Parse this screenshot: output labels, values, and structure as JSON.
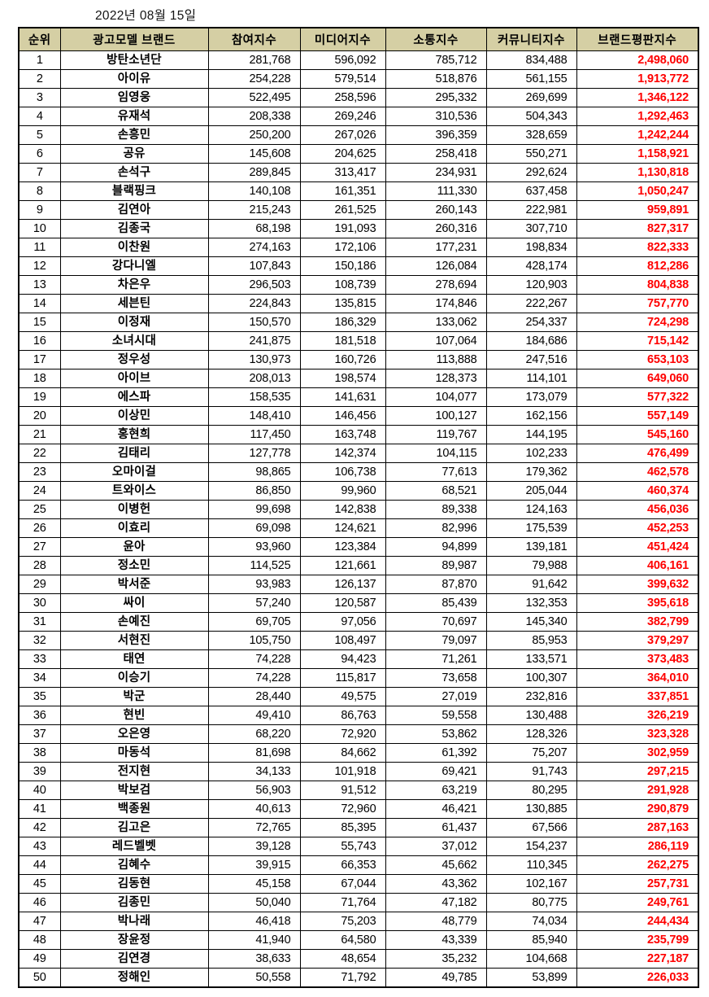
{
  "date_label": "2022년 08월 15일",
  "colors": {
    "header_bg": "#d5cfa4",
    "header_text": "#000000",
    "reputation_text": "#ff0000",
    "border": "#000000"
  },
  "chart_data": {
    "type": "table",
    "columns": [
      "순위",
      "광고모델 브랜드",
      "참여지수",
      "미디어지수",
      "소통지수",
      "커뮤니티지수",
      "브랜드평판지수"
    ],
    "rows": [
      [
        "1",
        "방탄소년단",
        "281,768",
        "596,092",
        "785,712",
        "834,488",
        "2,498,060"
      ],
      [
        "2",
        "아이유",
        "254,228",
        "579,514",
        "518,876",
        "561,155",
        "1,913,772"
      ],
      [
        "3",
        "임영웅",
        "522,495",
        "258,596",
        "295,332",
        "269,699",
        "1,346,122"
      ],
      [
        "4",
        "유재석",
        "208,338",
        "269,246",
        "310,536",
        "504,343",
        "1,292,463"
      ],
      [
        "5",
        "손흥민",
        "250,200",
        "267,026",
        "396,359",
        "328,659",
        "1,242,244"
      ],
      [
        "6",
        "공유",
        "145,608",
        "204,625",
        "258,418",
        "550,271",
        "1,158,921"
      ],
      [
        "7",
        "손석구",
        "289,845",
        "313,417",
        "234,931",
        "292,624",
        "1,130,818"
      ],
      [
        "8",
        "블랙핑크",
        "140,108",
        "161,351",
        "111,330",
        "637,458",
        "1,050,247"
      ],
      [
        "9",
        "김연아",
        "215,243",
        "261,525",
        "260,143",
        "222,981",
        "959,891"
      ],
      [
        "10",
        "김종국",
        "68,198",
        "191,093",
        "260,316",
        "307,710",
        "827,317"
      ],
      [
        "11",
        "이찬원",
        "274,163",
        "172,106",
        "177,231",
        "198,834",
        "822,333"
      ],
      [
        "12",
        "강다니엘",
        "107,843",
        "150,186",
        "126,084",
        "428,174",
        "812,286"
      ],
      [
        "13",
        "차은우",
        "296,503",
        "108,739",
        "278,694",
        "120,903",
        "804,838"
      ],
      [
        "14",
        "세븐틴",
        "224,843",
        "135,815",
        "174,846",
        "222,267",
        "757,770"
      ],
      [
        "15",
        "이정재",
        "150,570",
        "186,329",
        "133,062",
        "254,337",
        "724,298"
      ],
      [
        "16",
        "소녀시대",
        "241,875",
        "181,518",
        "107,064",
        "184,686",
        "715,142"
      ],
      [
        "17",
        "정우성",
        "130,973",
        "160,726",
        "113,888",
        "247,516",
        "653,103"
      ],
      [
        "18",
        "아이브",
        "208,013",
        "198,574",
        "128,373",
        "114,101",
        "649,060"
      ],
      [
        "19",
        "에스파",
        "158,535",
        "141,631",
        "104,077",
        "173,079",
        "577,322"
      ],
      [
        "20",
        "이상민",
        "148,410",
        "146,456",
        "100,127",
        "162,156",
        "557,149"
      ],
      [
        "21",
        "홍현희",
        "117,450",
        "163,748",
        "119,767",
        "144,195",
        "545,160"
      ],
      [
        "22",
        "김태리",
        "127,778",
        "142,374",
        "104,115",
        "102,233",
        "476,499"
      ],
      [
        "23",
        "오마이걸",
        "98,865",
        "106,738",
        "77,613",
        "179,362",
        "462,578"
      ],
      [
        "24",
        "트와이스",
        "86,850",
        "99,960",
        "68,521",
        "205,044",
        "460,374"
      ],
      [
        "25",
        "이병헌",
        "99,698",
        "142,838",
        "89,338",
        "124,163",
        "456,036"
      ],
      [
        "26",
        "이효리",
        "69,098",
        "124,621",
        "82,996",
        "175,539",
        "452,253"
      ],
      [
        "27",
        "윤아",
        "93,960",
        "123,384",
        "94,899",
        "139,181",
        "451,424"
      ],
      [
        "28",
        "정소민",
        "114,525",
        "121,661",
        "89,987",
        "79,988",
        "406,161"
      ],
      [
        "29",
        "박서준",
        "93,983",
        "126,137",
        "87,870",
        "91,642",
        "399,632"
      ],
      [
        "30",
        "싸이",
        "57,240",
        "120,587",
        "85,439",
        "132,353",
        "395,618"
      ],
      [
        "31",
        "손예진",
        "69,705",
        "97,056",
        "70,697",
        "145,340",
        "382,799"
      ],
      [
        "32",
        "서현진",
        "105,750",
        "108,497",
        "79,097",
        "85,953",
        "379,297"
      ],
      [
        "33",
        "태연",
        "74,228",
        "94,423",
        "71,261",
        "133,571",
        "373,483"
      ],
      [
        "34",
        "이승기",
        "74,228",
        "115,817",
        "73,658",
        "100,307",
        "364,010"
      ],
      [
        "35",
        "박군",
        "28,440",
        "49,575",
        "27,019",
        "232,816",
        "337,851"
      ],
      [
        "36",
        "현빈",
        "49,410",
        "86,763",
        "59,558",
        "130,488",
        "326,219"
      ],
      [
        "37",
        "오은영",
        "68,220",
        "72,920",
        "53,862",
        "128,326",
        "323,328"
      ],
      [
        "38",
        "마동석",
        "81,698",
        "84,662",
        "61,392",
        "75,207",
        "302,959"
      ],
      [
        "39",
        "전지현",
        "34,133",
        "101,918",
        "69,421",
        "91,743",
        "297,215"
      ],
      [
        "40",
        "박보검",
        "56,903",
        "91,512",
        "63,219",
        "80,295",
        "291,928"
      ],
      [
        "41",
        "백종원",
        "40,613",
        "72,960",
        "46,421",
        "130,885",
        "290,879"
      ],
      [
        "42",
        "김고은",
        "72,765",
        "85,395",
        "61,437",
        "67,566",
        "287,163"
      ],
      [
        "43",
        "레드벨벳",
        "39,128",
        "55,743",
        "37,012",
        "154,237",
        "286,119"
      ],
      [
        "44",
        "김혜수",
        "39,915",
        "66,353",
        "45,662",
        "110,345",
        "262,275"
      ],
      [
        "45",
        "김동현",
        "45,158",
        "67,044",
        "43,362",
        "102,167",
        "257,731"
      ],
      [
        "46",
        "김종민",
        "50,040",
        "71,764",
        "47,182",
        "80,775",
        "249,761"
      ],
      [
        "47",
        "박나래",
        "46,418",
        "75,203",
        "48,779",
        "74,034",
        "244,434"
      ],
      [
        "48",
        "장윤정",
        "41,940",
        "64,580",
        "43,339",
        "85,940",
        "235,799"
      ],
      [
        "49",
        "김연경",
        "38,633",
        "48,654",
        "35,232",
        "104,668",
        "227,187"
      ],
      [
        "50",
        "정해인",
        "50,558",
        "71,792",
        "49,785",
        "53,899",
        "226,033"
      ]
    ]
  }
}
